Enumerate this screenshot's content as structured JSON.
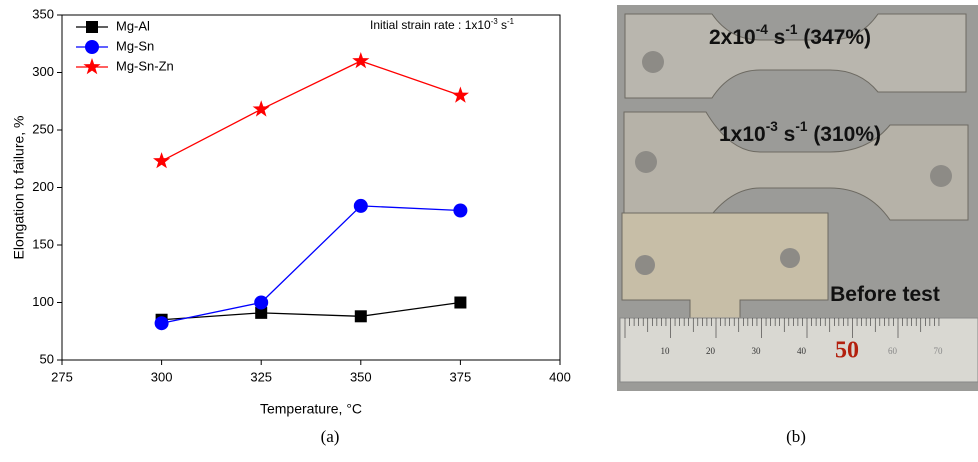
{
  "chart_data": {
    "type": "line",
    "xlabel": "Temperature, °C",
    "ylabel": "Elongation to failure, %",
    "annotation": [
      "Initial strain rate : 1x10",
      "-3",
      " s",
      "-1"
    ],
    "x": [
      300,
      325,
      350,
      375
    ],
    "series": [
      {
        "name": "Mg-Al",
        "color": "#000000",
        "marker": "square",
        "values": [
          85,
          91,
          88,
          100
        ]
      },
      {
        "name": "Mg-Sn",
        "color": "#0000ff",
        "marker": "circle",
        "values": [
          82,
          100,
          184,
          180
        ]
      },
      {
        "name": "Mg-Sn-Zn",
        "color": "#ff0000",
        "marker": "star",
        "values": [
          223,
          268,
          310,
          280
        ]
      }
    ],
    "xlim": [
      275,
      400
    ],
    "xticks": [
      275,
      300,
      325,
      350,
      375,
      400
    ],
    "ylim": [
      50,
      350
    ],
    "yticks": [
      50,
      100,
      150,
      200,
      250,
      300,
      350
    ],
    "legend": "upper-left"
  },
  "photo": {
    "labels": [
      [
        "2x10",
        "-4",
        " s",
        "-1",
        " (347%)"
      ],
      [
        "1x10",
        "-3",
        " s",
        "-1",
        " (310%)"
      ],
      [
        "Before test"
      ]
    ],
    "ruler": [
      "10",
      "20",
      "30",
      "40",
      "50",
      "60",
      "70"
    ]
  },
  "captions": [
    "(a)",
    "(b)"
  ]
}
